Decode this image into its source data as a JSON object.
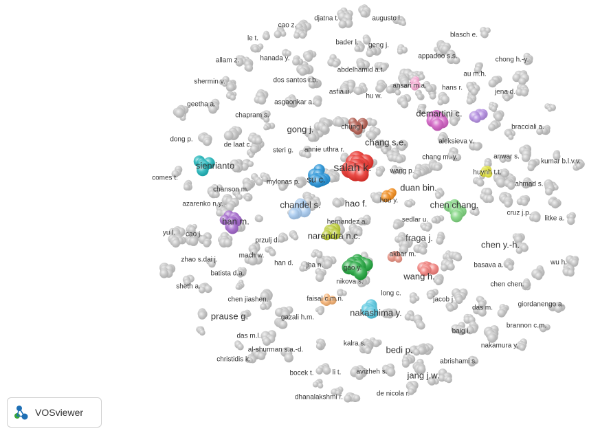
{
  "app": {
    "logo_text": "VOSviewer",
    "colors": {
      "node_default": "#c4c4c4",
      "label_text": "#333333",
      "logo_blue": "#1e6fb5",
      "logo_green": "#3aa63a"
    }
  },
  "map": {
    "label_color": "#333333",
    "labels": [
      "cao z.",
      "djatna t.",
      "augusto l.",
      "le t.",
      "bader l.",
      "geng j.",
      "blasch e.",
      "allam z.",
      "hanada y.",
      "appadoo s.s.",
      "chong h.-y.",
      "abdelhamid a.t.",
      "au m.h.",
      "shermin v.",
      "dos santos r.b.",
      "ansari m.a.",
      "hans r.",
      "asfia u.",
      "hu w.",
      "jena d.",
      "geetha a.",
      "asgaonkar a.",
      "chapram s.",
      "demartini c.",
      "chung i.",
      "gong j.",
      "bracciali a.",
      "dong p.",
      "de laat c.",
      "aleksieva v.",
      "chang s.e.",
      "steri g.",
      "annie uthra r.",
      "chang m.-y.",
      "anwar s.",
      "kumar b.l.v.v.",
      "sienrianto",
      "salah k.",
      "su c.",
      "wang p.",
      "huynh t.t.",
      "comes t.",
      "mylonas p.",
      "chanson m.",
      "duan bin.",
      "ahmad s.",
      "hou y.",
      "azarenko n.y.",
      "chandel s.",
      "hao f.",
      "chen chang.",
      "cruz j.p.",
      "sedlar u.",
      "litke a.",
      "hernandez a.",
      "han m.",
      "yu l.",
      "cao j.",
      "narendra n.c.",
      "przulj d.",
      "fraga j.",
      "chen y.-h.",
      "mach w.",
      "zhao s.dai j.",
      "akbar m.",
      "han d.",
      "jha n.",
      "gao y.",
      "wu h.",
      "basava a.",
      "batista d.a.",
      "nikova s.",
      "wang h.",
      "sheth a.",
      "chen chen.",
      "long c.",
      "jacob j.",
      "chen jiashen.",
      "faisal c.m.n.",
      "giordanengo a.",
      "das m.",
      "nakashima y.",
      "prause g.",
      "gazali h.m.",
      "brannon c.m.",
      "baig i.",
      "das m.l.",
      "kalra s.",
      "nakamura y.",
      "al-shurman s.a.-d.",
      "bedi p.",
      "christidis k.",
      "abrishami s.",
      "bocek t.",
      "li t.",
      "avizheh s.",
      "jang j.w.",
      "de nicola r.",
      "dhanalakshmi r."
    ],
    "clusters": [
      {
        "label": "sienrianto",
        "color": "#1bb3b8"
      },
      {
        "label": "su c.",
        "color": "#2090d6"
      },
      {
        "label": "salah k.",
        "color": "#e8302a"
      },
      {
        "label": "chung i.",
        "color": "#b0594c"
      },
      {
        "label": "demartini c.",
        "color": "#d05cc2"
      },
      {
        "label": "ansari m.a.",
        "color": "#f5a6d0"
      },
      {
        "label": "purple cluster",
        "color": "#b18ae0"
      },
      {
        "label": "hou y.",
        "color": "#f28b1a"
      },
      {
        "label": "huynh t.t.",
        "color": "#e2e23a"
      },
      {
        "label": "chandel s.",
        "color": "#a6caf0"
      },
      {
        "label": "chen chang.",
        "color": "#7ed47e"
      },
      {
        "label": "han m.",
        "color": "#9f62c9"
      },
      {
        "label": "narendra n.c.",
        "color": "#b9c931"
      },
      {
        "label": "gao y.",
        "color": "#1fa53c"
      },
      {
        "label": "akbar m.",
        "color": "#e88f80"
      },
      {
        "label": "wang h.",
        "color": "#f07c78"
      },
      {
        "label": "faisal c.m.n.",
        "color": "#f6b070"
      },
      {
        "label": "nakashima y.",
        "color": "#53c5de"
      }
    ]
  }
}
